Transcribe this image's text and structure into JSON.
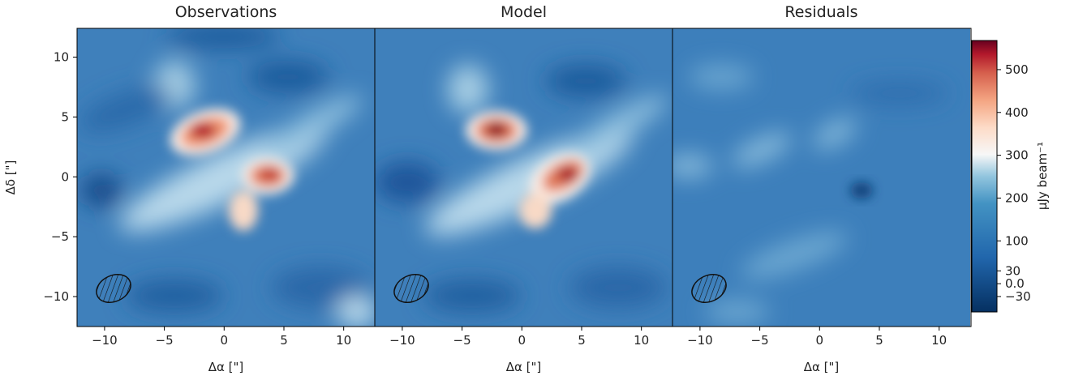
{
  "chart_data": {
    "type": "image",
    "panels": [
      {
        "title": "Observations"
      },
      {
        "title": "Model"
      },
      {
        "title": "Residuals"
      }
    ],
    "xlabel": "Δα [\"]",
    "ylabel": "Δδ [\"]",
    "xlim": [
      -12.3,
      12.6
    ],
    "ylim": [
      -12.5,
      12.4
    ],
    "xticks": [
      {
        "value": -10,
        "label": "−10"
      },
      {
        "value": -5,
        "label": "−5"
      },
      0,
      5,
      10
    ],
    "yticks": [
      {
        "value": -10,
        "label": "−10"
      },
      {
        "value": -5,
        "label": "−5"
      },
      0,
      5,
      10
    ],
    "colorbar": {
      "label": "μJy beam⁻¹",
      "lim": [
        -66,
        568
      ],
      "ticks": [
        {
          "value": -30,
          "label": "−30"
        },
        {
          "value": 0,
          "label": "0.0"
        },
        30,
        100,
        200,
        300,
        400,
        500
      ]
    }
  }
}
